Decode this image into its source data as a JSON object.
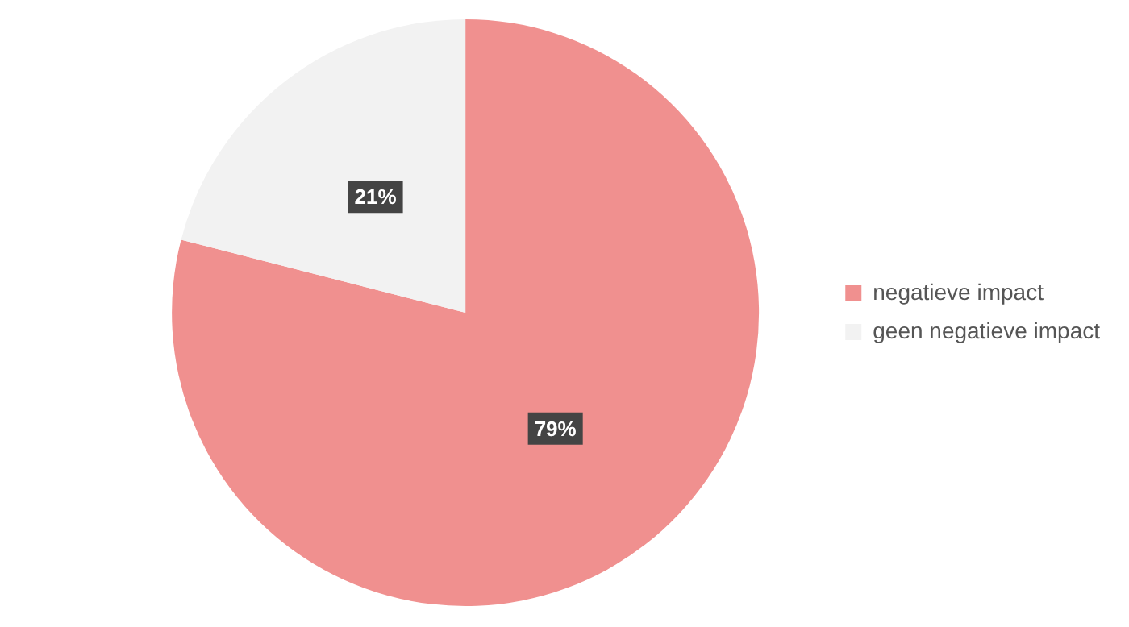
{
  "chart_data": {
    "type": "pie",
    "categories": [
      "negatieve impact",
      "geen negatieve impact"
    ],
    "values": [
      79,
      21
    ],
    "colors": [
      "#f0908f",
      "#f2f2f2"
    ],
    "value_labels": [
      "79%",
      "21%"
    ],
    "legend": "right"
  }
}
